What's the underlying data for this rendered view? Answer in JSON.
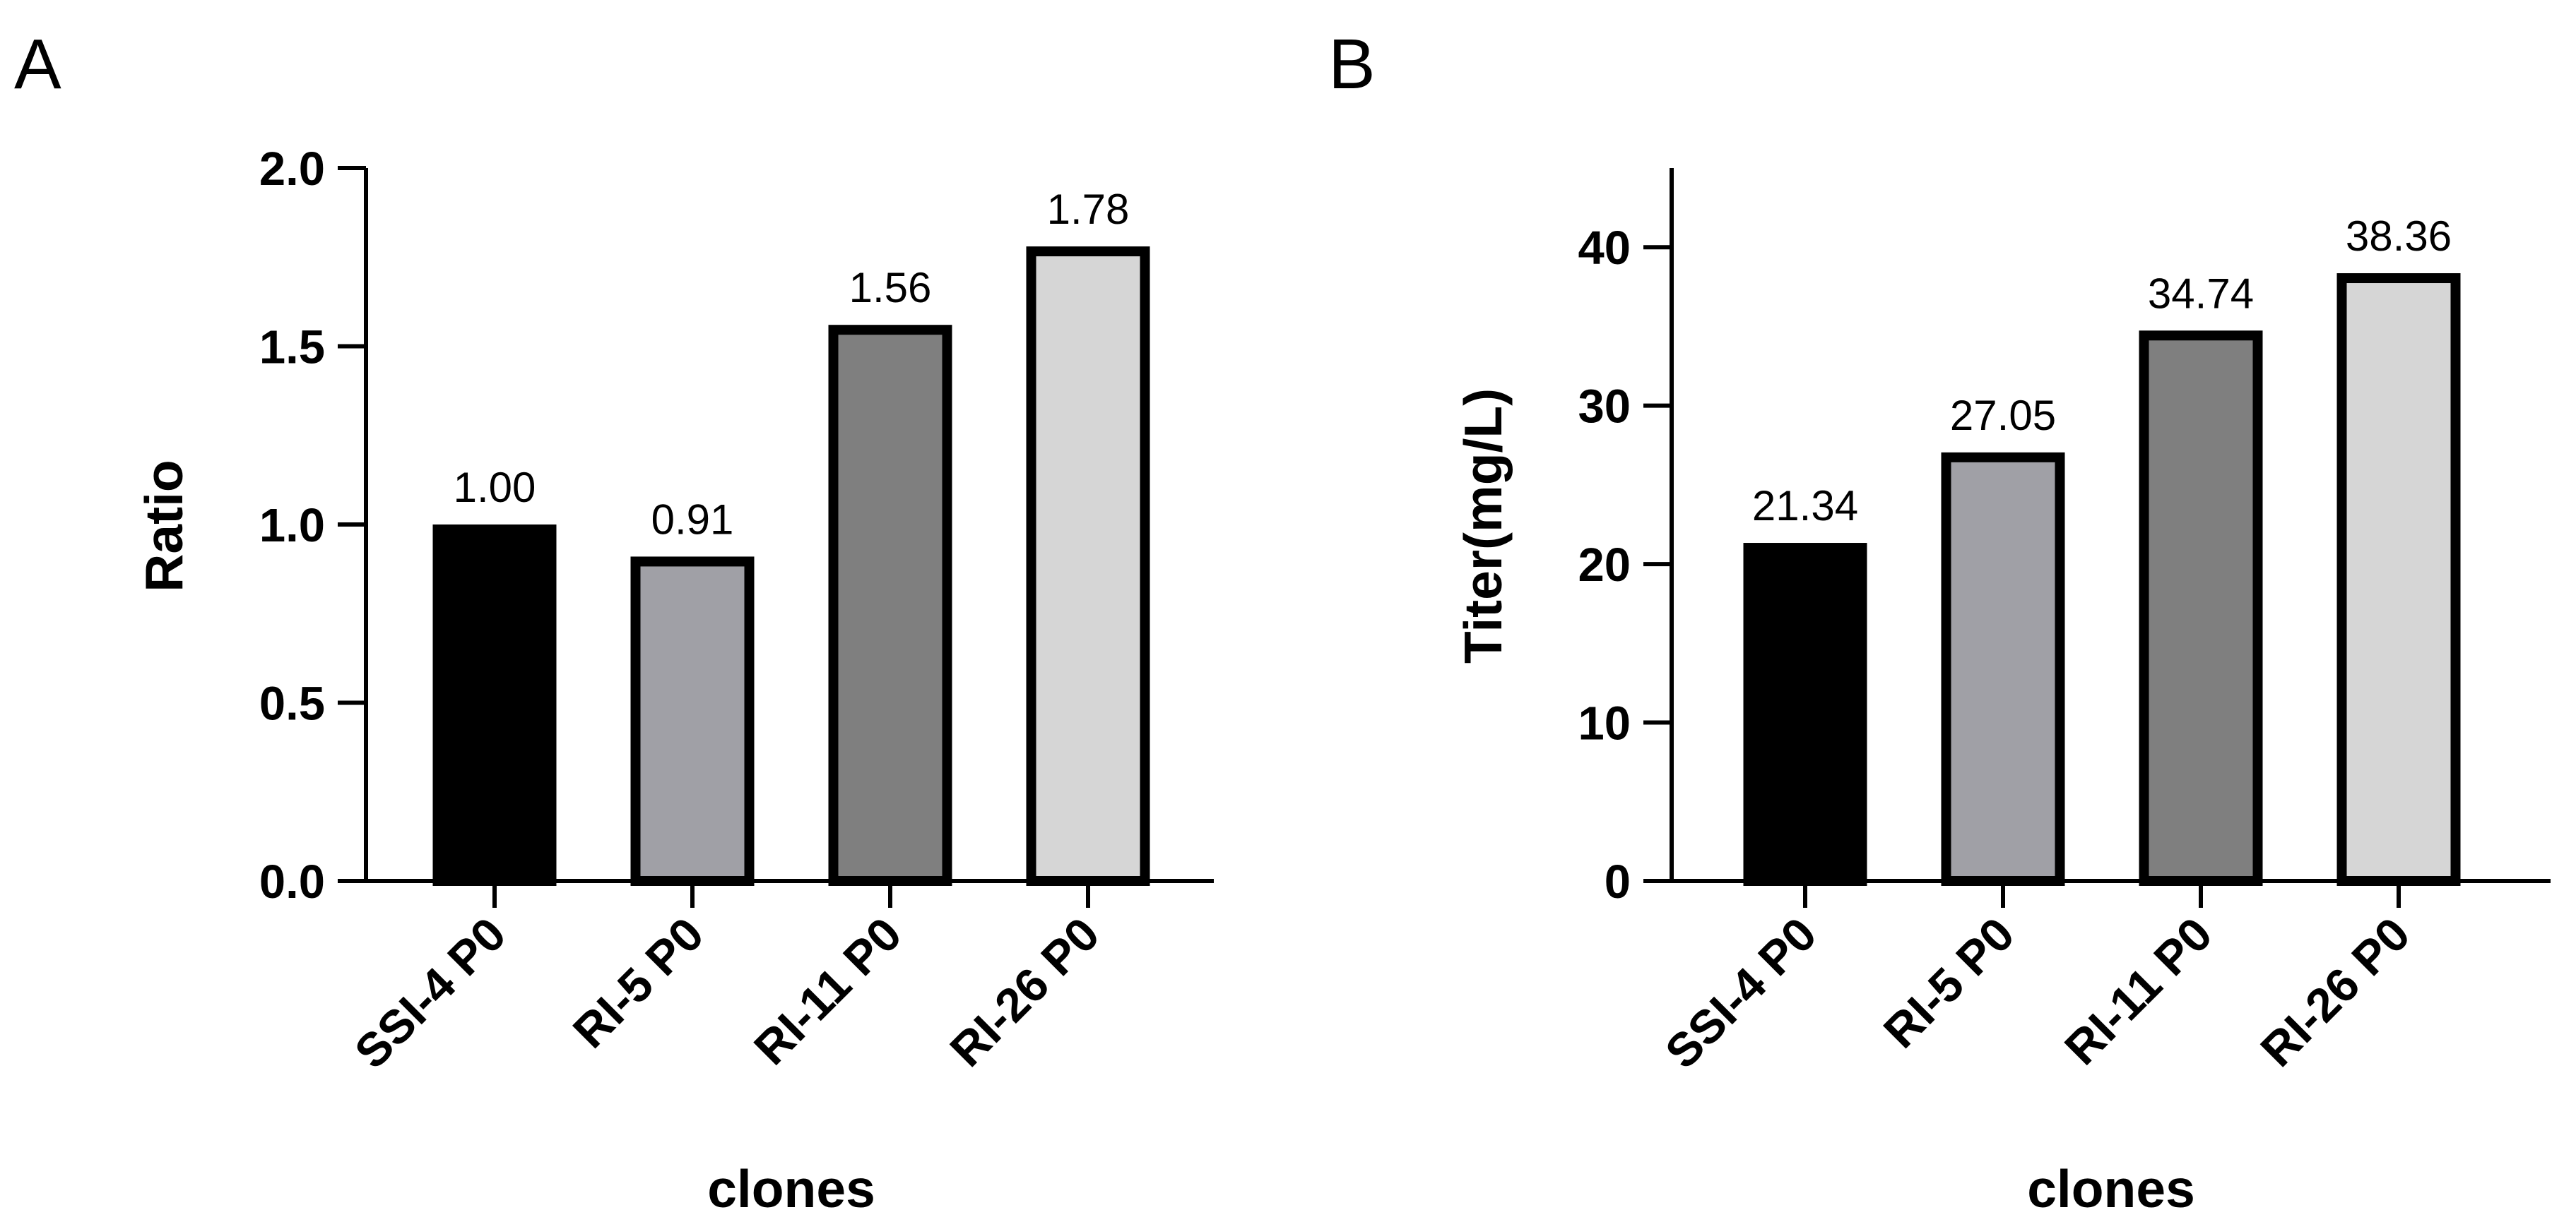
{
  "chart_data": [
    {
      "type": "bar",
      "panel_label": "A",
      "title": "",
      "categories": [
        "SSI-4 P0",
        "RI-5 P0",
        "RI-11 P0",
        "RI-26 P0"
      ],
      "values": [
        1.0,
        0.91,
        1.56,
        1.78
      ],
      "value_labels": [
        "1.00",
        "0.91",
        "1.56",
        "1.78"
      ],
      "colors": [
        "#000000",
        "#a0a0a6",
        "#7f7f7f",
        "#d6d6d6"
      ],
      "xlabel": "clones",
      "ylabel": "Ratio",
      "ylim": [
        0,
        2.0
      ],
      "yticks": [
        0,
        0.5,
        1.0,
        1.5,
        2.0
      ],
      "ytick_labels": [
        "0.0",
        "0.5",
        "1.0",
        "1.5",
        "2.0"
      ],
      "grid": false,
      "legend": "none"
    },
    {
      "type": "bar",
      "panel_label": "B",
      "title": "",
      "categories": [
        "SSI-4 P0",
        "RI-5 P0",
        "RI-11 P0",
        "RI-26 P0"
      ],
      "values": [
        21.34,
        27.05,
        34.74,
        38.36
      ],
      "value_labels": [
        "21.34",
        "27.05",
        "34.74",
        "38.36"
      ],
      "colors": [
        "#000000",
        "#a0a0a6",
        "#7f7f7f",
        "#d6d6d6"
      ],
      "xlabel": "clones",
      "ylabel": "Titer(mg/L)",
      "ylim": [
        0,
        45
      ],
      "yticks": [
        0,
        10,
        20,
        30,
        40
      ],
      "ytick_labels": [
        "0",
        "10",
        "20",
        "30",
        "40"
      ],
      "grid": false,
      "legend": "none"
    }
  ]
}
